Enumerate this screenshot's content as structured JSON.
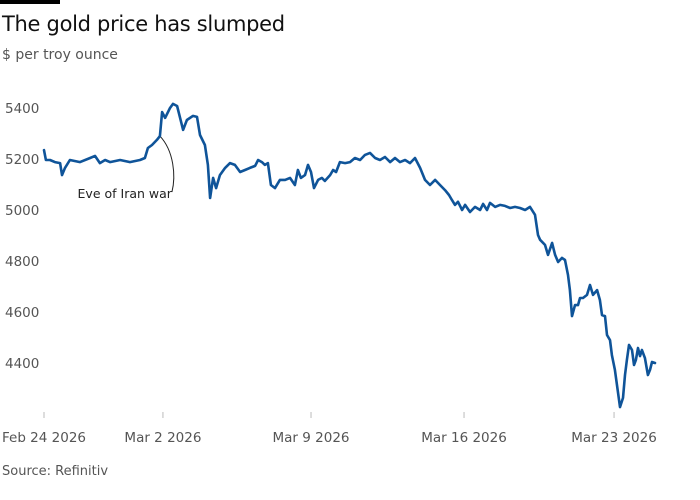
{
  "chart_data": {
    "type": "line",
    "title": "The gold price has slumped",
    "subtitle": "$ per troy ounce",
    "source": "Source: Refinitiv",
    "xlabel": "",
    "ylabel": "$ per troy ounce",
    "x_unit": "trading days since Feb 24 2026 (approx.)",
    "ylim": [
      4200,
      5450
    ],
    "xlim": [
      0,
      28.6
    ],
    "grid": false,
    "y_ticks": [
      {
        "value": 5400,
        "label": "5400"
      },
      {
        "value": 5200,
        "label": "5200"
      },
      {
        "value": 5000,
        "label": "5000"
      },
      {
        "value": 4800,
        "label": "4800"
      },
      {
        "value": 4600,
        "label": "4600"
      },
      {
        "value": 4400,
        "label": "4400"
      }
    ],
    "x_ticks": [
      {
        "value": 0,
        "label": "Feb 24 2026"
      },
      {
        "value": 5.55,
        "label": "Mar 2 2026"
      },
      {
        "value": 12.46,
        "label": "Mar 9 2026"
      },
      {
        "value": 19.6,
        "label": "Mar 16 2026"
      },
      {
        "value": 26.6,
        "label": "Mar 23 2026"
      }
    ],
    "annotations": [
      {
        "text": "Eve of Iran war",
        "x": 5.41,
        "y": 5290
      }
    ],
    "series": [
      {
        "name": "Gold price",
        "color": "#0f5499",
        "points": [
          [
            0,
            5235
          ],
          [
            0.09,
            5196
          ],
          [
            0.28,
            5196
          ],
          [
            0.51,
            5188
          ],
          [
            0.75,
            5184
          ],
          [
            0.84,
            5137
          ],
          [
            0.98,
            5165
          ],
          [
            1.21,
            5196
          ],
          [
            1.68,
            5188
          ],
          [
            2.15,
            5204
          ],
          [
            2.38,
            5212
          ],
          [
            2.61,
            5184
          ],
          [
            2.85,
            5196
          ],
          [
            3.08,
            5188
          ],
          [
            3.55,
            5196
          ],
          [
            4.01,
            5188
          ],
          [
            4.48,
            5196
          ],
          [
            4.71,
            5204
          ],
          [
            4.85,
            5243
          ],
          [
            5.04,
            5255
          ],
          [
            5.27,
            5275
          ],
          [
            5.41,
            5290
          ],
          [
            5.51,
            5384
          ],
          [
            5.65,
            5361
          ],
          [
            5.88,
            5400
          ],
          [
            6.02,
            5416
          ],
          [
            6.21,
            5408
          ],
          [
            6.35,
            5361
          ],
          [
            6.49,
            5314
          ],
          [
            6.67,
            5353
          ],
          [
            6.95,
            5369
          ],
          [
            7.14,
            5365
          ],
          [
            7.28,
            5294
          ],
          [
            7.51,
            5255
          ],
          [
            7.65,
            5177
          ],
          [
            7.75,
            5047
          ],
          [
            7.89,
            5126
          ],
          [
            8.03,
            5086
          ],
          [
            8.21,
            5137
          ],
          [
            8.45,
            5165
          ],
          [
            8.68,
            5184
          ],
          [
            8.91,
            5177
          ],
          [
            9.15,
            5149
          ],
          [
            9.38,
            5157
          ],
          [
            9.61,
            5165
          ],
          [
            9.85,
            5173
          ],
          [
            9.99,
            5196
          ],
          [
            10.17,
            5188
          ],
          [
            10.31,
            5177
          ],
          [
            10.45,
            5184
          ],
          [
            10.59,
            5098
          ],
          [
            10.78,
            5086
          ],
          [
            11.01,
            5118
          ],
          [
            11.25,
            5118
          ],
          [
            11.48,
            5126
          ],
          [
            11.71,
            5098
          ],
          [
            11.85,
            5157
          ],
          [
            11.99,
            5126
          ],
          [
            12.18,
            5137
          ],
          [
            12.32,
            5177
          ],
          [
            12.46,
            5149
          ],
          [
            12.6,
            5086
          ],
          [
            12.79,
            5118
          ],
          [
            12.97,
            5126
          ],
          [
            13.11,
            5114
          ],
          [
            13.35,
            5137
          ],
          [
            13.49,
            5157
          ],
          [
            13.63,
            5149
          ],
          [
            13.81,
            5188
          ],
          [
            14.05,
            5184
          ],
          [
            14.28,
            5188
          ],
          [
            14.51,
            5204
          ],
          [
            14.75,
            5196
          ],
          [
            14.98,
            5216
          ],
          [
            15.21,
            5224
          ],
          [
            15.45,
            5204
          ],
          [
            15.68,
            5196
          ],
          [
            15.91,
            5208
          ],
          [
            16.15,
            5188
          ],
          [
            16.38,
            5204
          ],
          [
            16.61,
            5188
          ],
          [
            16.85,
            5196
          ],
          [
            17.08,
            5184
          ],
          [
            17.31,
            5204
          ],
          [
            17.55,
            5165
          ],
          [
            17.78,
            5118
          ],
          [
            18.01,
            5098
          ],
          [
            18.25,
            5118
          ],
          [
            18.48,
            5098
          ],
          [
            18.71,
            5078
          ],
          [
            18.9,
            5059
          ],
          [
            19.04,
            5039
          ],
          [
            19.18,
            5020
          ],
          [
            19.32,
            5032
          ],
          [
            19.51,
            5000
          ],
          [
            19.65,
            5020
          ],
          [
            19.88,
            4992
          ],
          [
            20.11,
            5012
          ],
          [
            20.35,
            5000
          ],
          [
            20.49,
            5024
          ],
          [
            20.67,
            5000
          ],
          [
            20.81,
            5028
          ],
          [
            21.05,
            5012
          ],
          [
            21.28,
            5020
          ],
          [
            21.51,
            5016
          ],
          [
            21.75,
            5008
          ],
          [
            21.98,
            5012
          ],
          [
            22.21,
            5008
          ],
          [
            22.45,
            5000
          ],
          [
            22.68,
            5012
          ],
          [
            22.91,
            4981
          ],
          [
            23.05,
            4902
          ],
          [
            23.15,
            4883
          ],
          [
            23.38,
            4863
          ],
          [
            23.52,
            4824
          ],
          [
            23.71,
            4871
          ],
          [
            23.85,
            4824
          ],
          [
            23.99,
            4796
          ],
          [
            24.17,
            4812
          ],
          [
            24.31,
            4804
          ],
          [
            24.45,
            4745
          ],
          [
            24.54,
            4686
          ],
          [
            24.64,
            4584
          ],
          [
            24.78,
            4627
          ],
          [
            24.92,
            4627
          ],
          [
            25.01,
            4655
          ],
          [
            25.15,
            4655
          ],
          [
            25.34,
            4667
          ],
          [
            25.48,
            4706
          ],
          [
            25.62,
            4667
          ],
          [
            25.81,
            4686
          ],
          [
            25.94,
            4647
          ],
          [
            26.04,
            4588
          ],
          [
            26.18,
            4584
          ],
          [
            26.27,
            4510
          ],
          [
            26.41,
            4490
          ],
          [
            26.5,
            4431
          ],
          [
            26.64,
            4373
          ],
          [
            26.88,
            4227
          ],
          [
            27.02,
            4263
          ],
          [
            27.11,
            4353
          ],
          [
            27.2,
            4412
          ],
          [
            27.3,
            4471
          ],
          [
            27.44,
            4451
          ],
          [
            27.53,
            4392
          ],
          [
            27.62,
            4412
          ],
          [
            27.72,
            4459
          ],
          [
            27.81,
            4427
          ],
          [
            27.9,
            4451
          ],
          [
            28.04,
            4420
          ],
          [
            28.18,
            4353
          ],
          [
            28.28,
            4373
          ],
          [
            28.37,
            4404
          ],
          [
            28.51,
            4400
          ]
        ]
      }
    ]
  }
}
